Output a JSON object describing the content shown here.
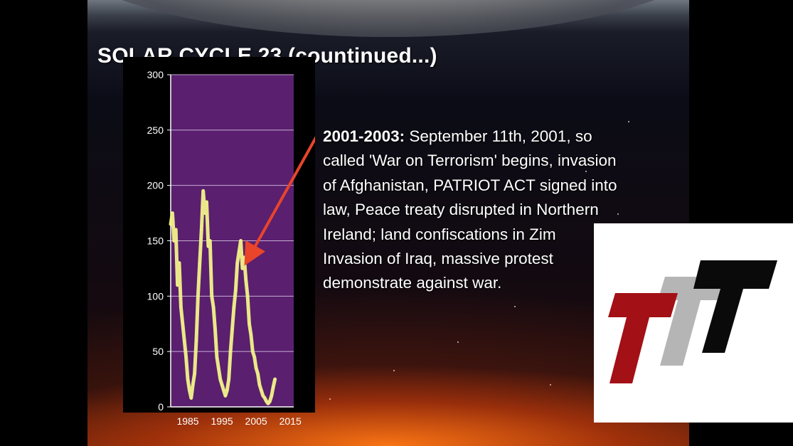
{
  "slide": {
    "title": "SOLAR CYCLE 23 (countinued...)",
    "text": {
      "lead": "2001-2003:",
      "lines": [
        " September 11th, 2001, so",
        "called 'War on Terrorism' begins, invasion",
        "of Afghanistan, PATRIOT ACT signed into",
        "law, Peace treaty disrupted in Northern",
        "Ireland; land confiscations in Zim",
        "Invasion of Iraq, massive protest",
        "demonstrate against war."
      ]
    }
  },
  "colors": {
    "plot_background": "#5a1f6e",
    "series_line": "#f2f28a",
    "arrow": "#e8452a",
    "axis_text": "#ffffff",
    "logo_red": "#a31015",
    "logo_gray": "#b5b5b5",
    "logo_black": "#0a0a0a"
  },
  "chart_data": {
    "type": "line",
    "title": "",
    "xlabel": "",
    "ylabel": "",
    "xlim": [
      1980,
      2016
    ],
    "ylim": [
      0,
      300
    ],
    "x_ticks": [
      1985,
      1995,
      2005,
      2015
    ],
    "x_tick_labels": [
      "1985",
      "1995",
      "2005",
      "2015"
    ],
    "y_ticks": [
      0,
      50,
      100,
      150,
      200,
      250,
      300
    ],
    "y_tick_labels": [
      "0",
      "50",
      "100",
      "150",
      "200",
      "250",
      "300"
    ],
    "grid": "horizontal",
    "annotations": [
      {
        "type": "arrow",
        "target_x": 2001.5,
        "target_y": 130
      }
    ],
    "series": [
      {
        "x": [
          1980.0,
          1980.5,
          1981.0,
          1981.5,
          1982.0,
          1982.5,
          1983.0,
          1983.5,
          1984.0,
          1984.5,
          1985.0,
          1985.5,
          1986.0,
          1986.5,
          1987.0,
          1987.5,
          1988.0,
          1988.5,
          1989.0,
          1989.5,
          1990.0,
          1990.5,
          1991.0,
          1991.5,
          1992.0,
          1992.5,
          1993.0,
          1993.5,
          1994.0,
          1994.5,
          1995.0,
          1995.5,
          1996.0,
          1996.5,
          1997.0,
          1997.5,
          1998.0,
          1998.5,
          1999.0,
          1999.5,
          2000.0,
          2000.5,
          2001.0,
          2001.5,
          2002.0,
          2002.5,
          2003.0,
          2003.5,
          2004.0,
          2004.5,
          2005.0,
          2005.5,
          2006.0,
          2006.5,
          2007.0,
          2007.5,
          2008.0,
          2008.5,
          2009.0,
          2009.5,
          2010.0,
          2010.5
        ],
        "y": [
          165,
          175,
          150,
          160,
          110,
          130,
          90,
          75,
          60,
          45,
          25,
          15,
          8,
          20,
          30,
          60,
          100,
          130,
          160,
          195,
          175,
          185,
          145,
          150,
          100,
          90,
          70,
          45,
          35,
          25,
          20,
          15,
          10,
          15,
          25,
          50,
          70,
          90,
          105,
          130,
          140,
          150,
          125,
          135,
          115,
          100,
          75,
          65,
          50,
          45,
          35,
          30,
          20,
          15,
          10,
          8,
          5,
          3,
          5,
          10,
          18,
          25
        ]
      }
    ]
  },
  "logo": {
    "name": "logo-ttt"
  }
}
